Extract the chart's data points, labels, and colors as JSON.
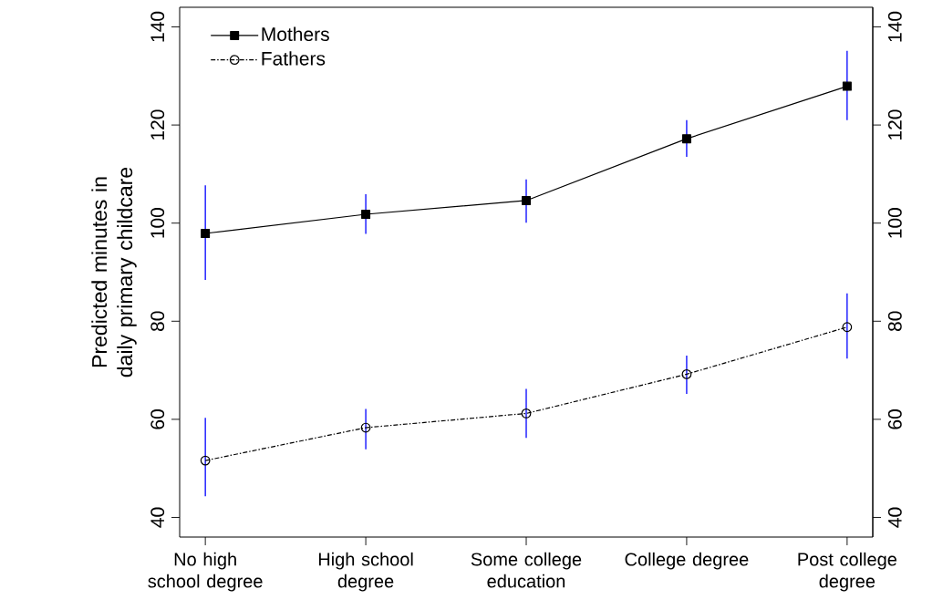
{
  "chart_data": {
    "type": "line",
    "ylabel": "Predicted minutes in daily primary childcare",
    "categories": [
      "No high school degree",
      "High school degree",
      "Some college education",
      "College degree",
      "Post college degree"
    ],
    "series": [
      {
        "name": "Mothers",
        "color": "#000000",
        "marker": "square",
        "line_style": "solid",
        "values": [
          97.9,
          101.8,
          104.6,
          117.2,
          127.9
        ],
        "errors": [
          [
            88.4,
            107.7
          ],
          [
            97.8,
            105.9
          ],
          [
            100.1,
            108.9
          ],
          [
            113.5,
            121
          ],
          [
            121,
            135.1
          ]
        ]
      },
      {
        "name": "Fathers",
        "color": "#000000",
        "marker": "circle",
        "line_style": "dashed",
        "values": [
          51.6,
          58.3,
          61.2,
          69.2,
          78.8
        ],
        "errors": [
          [
            44.3,
            60.3
          ],
          [
            53.9,
            62.1
          ],
          [
            56.2,
            66.2
          ],
          [
            65.2,
            73
          ],
          [
            72.4,
            85.7
          ]
        ]
      }
    ],
    "ylim": [
      36,
      144
    ],
    "yticks": [
      40,
      60,
      80,
      100,
      120,
      140
    ],
    "y2lim": [
      36,
      144
    ],
    "y2ticks": [
      40,
      60,
      80,
      100,
      120,
      140
    ],
    "legend": "top left",
    "grid": false
  }
}
